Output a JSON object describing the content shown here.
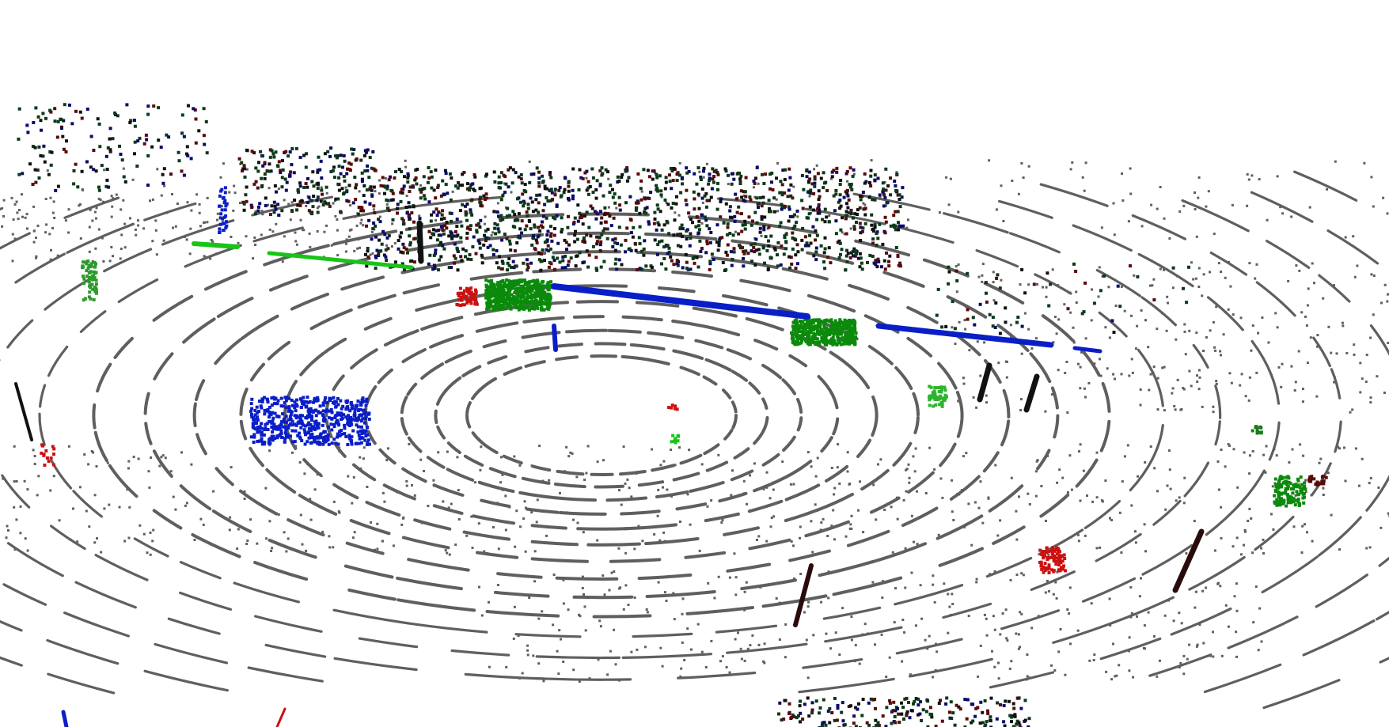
{
  "scene": {
    "kind": "lidar-point-cloud",
    "background_color": "#ffffff",
    "ground_color": "#5f5f5f",
    "label_colors": {
      "vehicle": "#0b8a0b",
      "vegetation_green": "#17c417",
      "barrier_blue": "#0a1ec8",
      "pedestrian_red": "#cc1111",
      "pole_dark": "#111111",
      "vegetation_dark_red": "#5a0a0a",
      "vegetation_dark_green": "#0b3a1a",
      "navy": "#0a0a6a"
    }
  }
}
